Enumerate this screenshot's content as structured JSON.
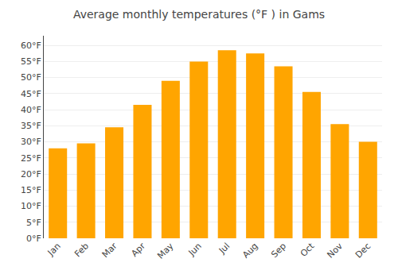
{
  "chart_data": {
    "type": "bar",
    "title": "Average monthly temperatures (°F ) in Gams",
    "categories": [
      "Jan",
      "Feb",
      "Mar",
      "Apr",
      "May",
      "Jun",
      "Jul",
      "Aug",
      "Sep",
      "Oct",
      "Nov",
      "Dec"
    ],
    "values": [
      28.0,
      29.5,
      34.5,
      41.5,
      49.0,
      55.0,
      58.5,
      57.5,
      53.5,
      45.5,
      35.5,
      30.0
    ],
    "color": "#FFA500",
    "ylim": [
      0,
      63
    ],
    "yticks": [
      {
        "value": 0,
        "label": "0°F"
      },
      {
        "value": 5,
        "label": "5°F"
      },
      {
        "value": 10,
        "label": "10°F"
      },
      {
        "value": 15,
        "label": "15°F"
      },
      {
        "value": 20,
        "label": "20°F"
      },
      {
        "value": 25,
        "label": "25°F"
      },
      {
        "value": 30,
        "label": "30°F"
      },
      {
        "value": 35,
        "label": "35°F"
      },
      {
        "value": 40,
        "label": "40°F"
      },
      {
        "value": 45,
        "label": "45°F"
      },
      {
        "value": 50,
        "label": "50°F"
      },
      {
        "value": 55,
        "label": "55°F"
      },
      {
        "value": 60,
        "label": "60°F"
      }
    ],
    "grid": true
  }
}
